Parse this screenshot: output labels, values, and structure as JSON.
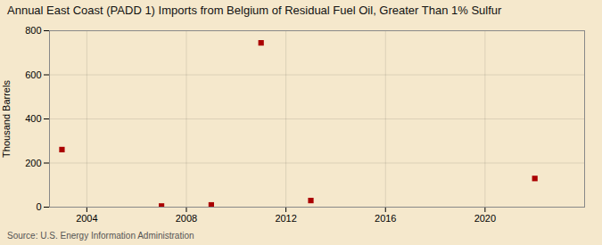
{
  "chart_data": {
    "type": "scatter",
    "title": "Annual East Coast (PADD 1) Imports from Belgium of Residual Fuel Oil, Greater Than 1% Sulfur",
    "ylabel": "Thousand Barrels",
    "source": "Source: U.S. Energy Information Administration",
    "x": [
      2003,
      2007,
      2009,
      2011,
      2013,
      2022
    ],
    "values": [
      261,
      5,
      10,
      745,
      30,
      130
    ],
    "color": "#aa0000",
    "marker": "square",
    "xlim": [
      2002.5,
      2024
    ],
    "ylim": [
      0,
      800
    ],
    "xticks": [
      2004,
      2008,
      2012,
      2016,
      2020
    ],
    "yticks": [
      0,
      200,
      400,
      600,
      800
    ],
    "grid": true
  }
}
